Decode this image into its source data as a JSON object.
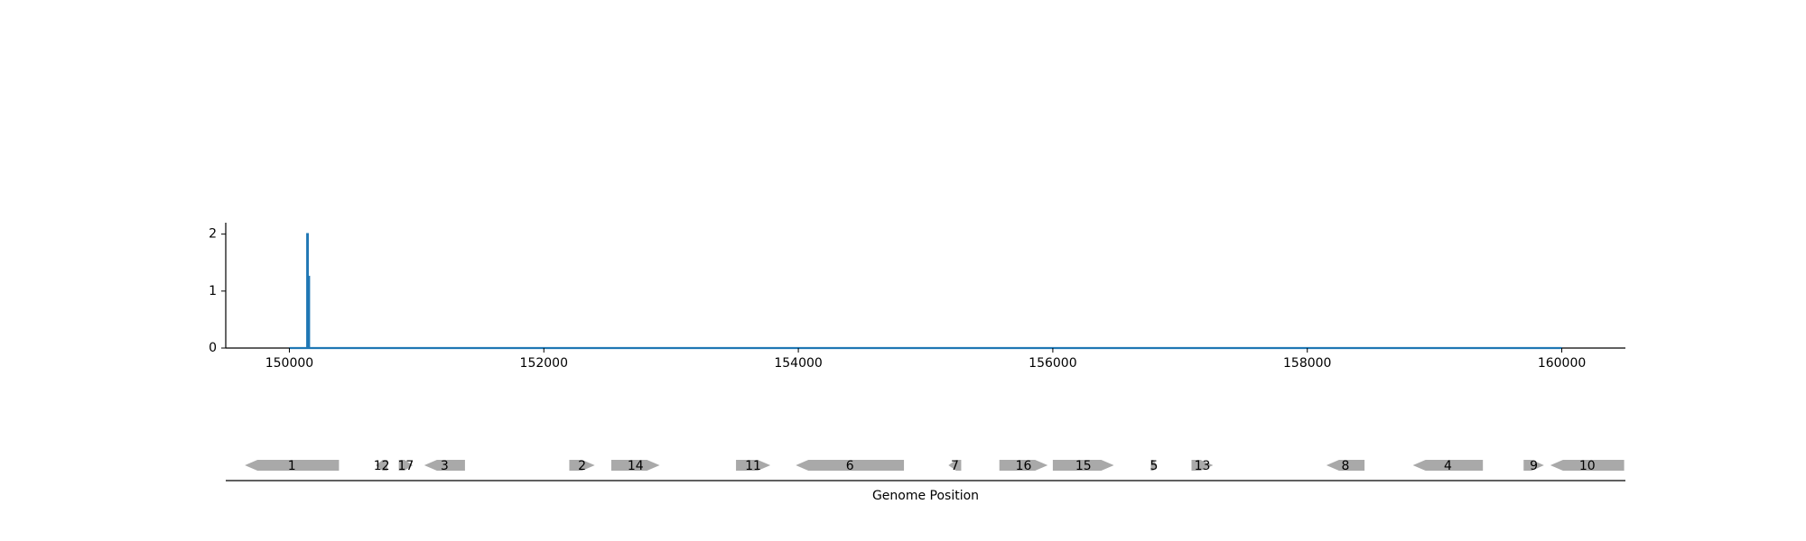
{
  "chart_data": [
    {
      "type": "line",
      "title": "",
      "xlabel": "",
      "ylabel": "",
      "xlim": [
        149500,
        160500
      ],
      "ylim": [
        0,
        2.2
      ],
      "x_ticks": [
        150000,
        152000,
        154000,
        156000,
        158000,
        160000
      ],
      "y_ticks": [
        0,
        1,
        2
      ],
      "x_tick_labels": [
        "150000",
        "152000",
        "154000",
        "156000",
        "158000",
        "160000"
      ],
      "y_tick_labels": [
        "0",
        "1",
        "2"
      ],
      "series": [
        {
          "color": "#1f77b4",
          "x": [
            150000,
            150140,
            150140,
            150145,
            150145,
            150150,
            150150,
            150155,
            150155,
            160000
          ],
          "y": [
            0,
            0,
            2.0,
            2.0,
            0,
            0,
            1.25,
            1.25,
            0,
            0
          ]
        }
      ],
      "grid": false
    },
    {
      "type": "gene-map",
      "xlabel": "Genome Position",
      "xlim": [
        149500,
        160500
      ],
      "gene_color": "#a9a9a9",
      "genes": [
        {
          "label": "1",
          "start": 149650,
          "end": 150390,
          "strand": "-"
        },
        {
          "label": "12",
          "start": 150680,
          "end": 150770,
          "strand": "-"
        },
        {
          "label": "17",
          "start": 150860,
          "end": 150970,
          "strand": "+"
        },
        {
          "label": "3",
          "start": 151060,
          "end": 151380,
          "strand": "-"
        },
        {
          "label": "2",
          "start": 152200,
          "end": 152400,
          "strand": "+"
        },
        {
          "label": "14",
          "start": 152530,
          "end": 152910,
          "strand": "+"
        },
        {
          "label": "11",
          "start": 153510,
          "end": 153780,
          "strand": "+"
        },
        {
          "label": "6",
          "start": 153980,
          "end": 154830,
          "strand": "-"
        },
        {
          "label": "7",
          "start": 155180,
          "end": 155280,
          "strand": "-"
        },
        {
          "label": "16",
          "start": 155580,
          "end": 155960,
          "strand": "+"
        },
        {
          "label": "15",
          "start": 156000,
          "end": 156480,
          "strand": "+"
        },
        {
          "label": "5",
          "start": 156770,
          "end": 156820,
          "strand": "+"
        },
        {
          "label": "13",
          "start": 157090,
          "end": 157260,
          "strand": "+"
        },
        {
          "label": "8",
          "start": 158150,
          "end": 158450,
          "strand": "-"
        },
        {
          "label": "4",
          "start": 158830,
          "end": 159380,
          "strand": "-"
        },
        {
          "label": "9",
          "start": 159700,
          "end": 159860,
          "strand": "+"
        },
        {
          "label": "10",
          "start": 159910,
          "end": 160490,
          "strand": "-"
        }
      ]
    }
  ]
}
